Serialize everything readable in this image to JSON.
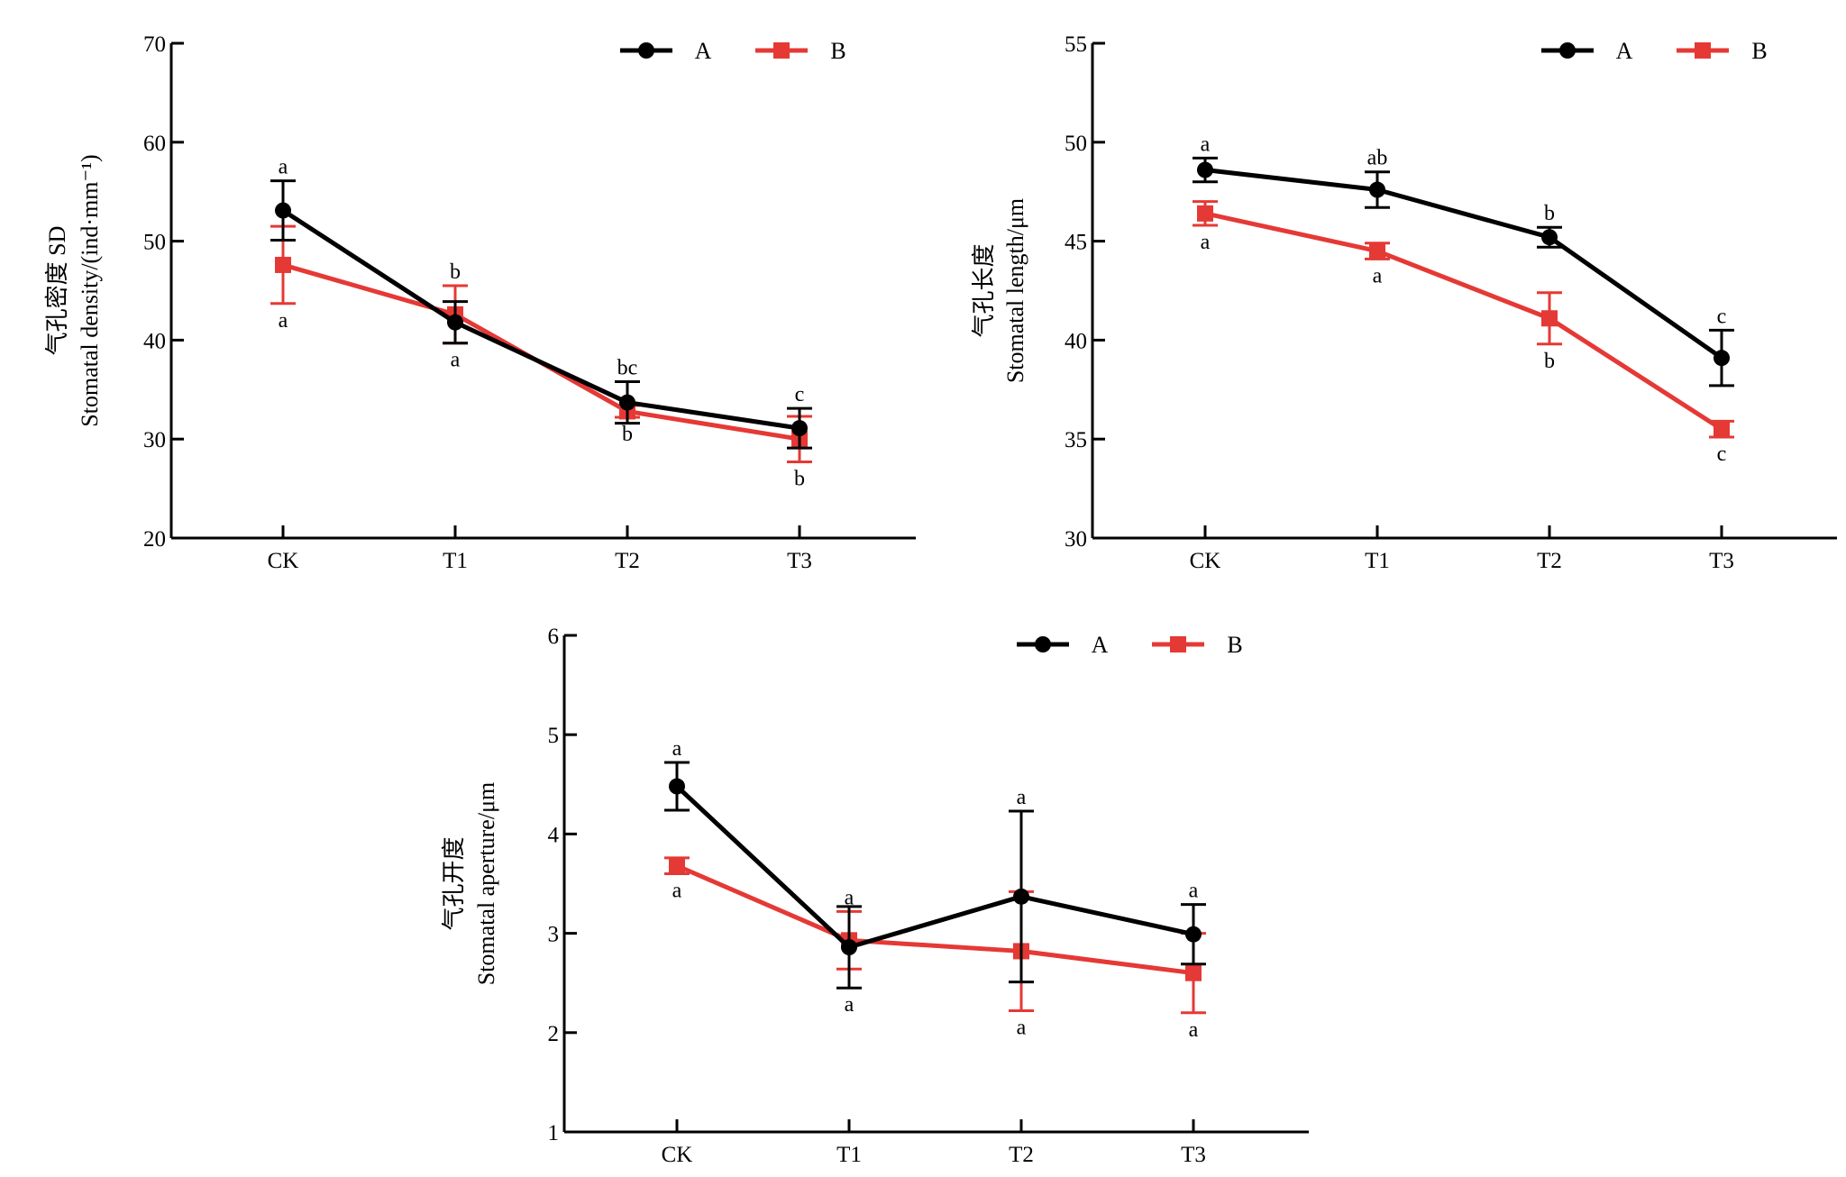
{
  "figure": {
    "series_names": [
      "A",
      "B"
    ],
    "colors": {
      "A": "#000000",
      "B": "#e53935"
    }
  },
  "chart_data": [
    {
      "id": "density",
      "type": "line",
      "title": "",
      "ylabel_cn": "气孔密度 SD",
      "ylabel_en": "Stomatal density/(ind·mm⁻¹)",
      "xlabel": "",
      "categories": [
        "CK",
        "T1",
        "T2",
        "T3"
      ],
      "ylim": [
        20,
        70
      ],
      "yticks": [
        20,
        30,
        40,
        50,
        60,
        70
      ],
      "legend": "top-right",
      "grid": false,
      "series": [
        {
          "name": "A",
          "color": "#000000",
          "marker": "circle",
          "values": [
            53.1,
            41.8,
            33.7,
            31.1
          ],
          "errors": [
            3.0,
            2.1,
            2.1,
            2.0
          ],
          "letters": [
            "a",
            "a",
            "bc",
            "c"
          ],
          "letter_pos": [
            "above",
            "below",
            "above",
            "above"
          ]
        },
        {
          "name": "B",
          "color": "#e53935",
          "marker": "square",
          "values": [
            47.6,
            42.6,
            32.8,
            30.0
          ],
          "errors": [
            3.9,
            2.9,
            0.6,
            2.3
          ],
          "letters": [
            "a",
            "b",
            "b",
            "b"
          ],
          "letter_pos": [
            "below",
            "above",
            "below",
            "below"
          ]
        }
      ]
    },
    {
      "id": "length",
      "type": "line",
      "title": "",
      "ylabel_cn": "气孔长度",
      "ylabel_en": "Stomatal length/μm",
      "xlabel": "",
      "categories": [
        "CK",
        "T1",
        "T2",
        "T3"
      ],
      "ylim": [
        30,
        55
      ],
      "yticks": [
        30,
        35,
        40,
        45,
        50,
        55
      ],
      "legend": "top-right",
      "grid": false,
      "series": [
        {
          "name": "A",
          "color": "#000000",
          "marker": "circle",
          "values": [
            48.6,
            47.6,
            45.2,
            39.1
          ],
          "errors": [
            0.6,
            0.9,
            0.5,
            1.4
          ],
          "letters": [
            "a",
            "ab",
            "b",
            "c"
          ],
          "letter_pos": [
            "above",
            "above",
            "above",
            "above"
          ]
        },
        {
          "name": "B",
          "color": "#e53935",
          "marker": "square",
          "values": [
            46.4,
            44.5,
            41.1,
            35.5
          ],
          "errors": [
            0.6,
            0.4,
            1.3,
            0.4
          ],
          "letters": [
            "a",
            "a",
            "b",
            "c"
          ],
          "letter_pos": [
            "below",
            "below",
            "below",
            "below"
          ]
        }
      ]
    },
    {
      "id": "aperture",
      "type": "line",
      "title": "",
      "ylabel_cn": "气孔开度",
      "ylabel_en": "Stomatal aperture/μm",
      "xlabel": "",
      "categories": [
        "CK",
        "T1",
        "T2",
        "T3"
      ],
      "ylim": [
        1,
        6
      ],
      "yticks": [
        1,
        2,
        3,
        4,
        5,
        6
      ],
      "legend": "top-right",
      "grid": false,
      "series": [
        {
          "name": "A",
          "color": "#000000",
          "marker": "circle",
          "values": [
            4.48,
            2.86,
            3.37,
            2.99
          ],
          "errors": [
            0.24,
            0.41,
            0.86,
            0.3
          ],
          "letters": [
            "a",
            "a",
            "a",
            "a"
          ],
          "letter_pos": [
            "above",
            "below",
            "above",
            "above"
          ]
        },
        {
          "name": "B",
          "color": "#e53935",
          "marker": "square",
          "values": [
            3.68,
            2.93,
            2.82,
            2.6
          ],
          "errors": [
            0.08,
            0.29,
            0.6,
            0.4
          ],
          "letters": [
            "a",
            "a",
            "a",
            "a"
          ],
          "letter_pos": [
            "below",
            "above",
            "below",
            "below"
          ]
        }
      ]
    }
  ]
}
